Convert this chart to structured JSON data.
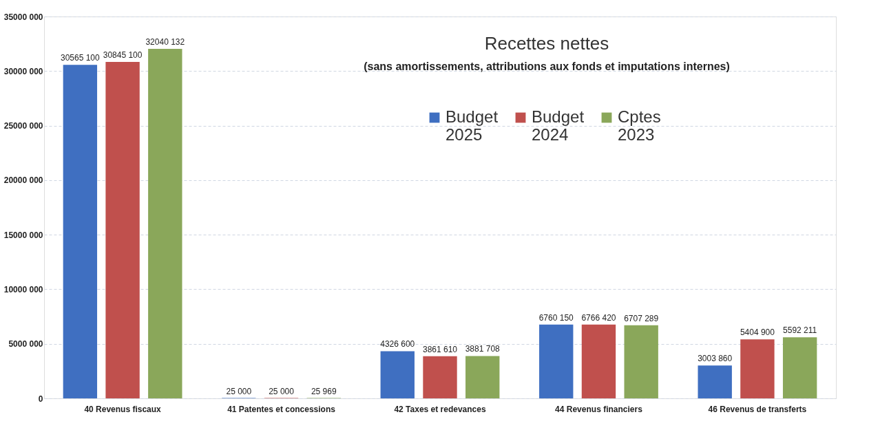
{
  "chart_data": {
    "type": "bar",
    "title": "Recettes nettes",
    "subtitle": "(sans amortissements, attributions aux fonds et imputations internes)",
    "categories": [
      "40 Revenus fiscaux",
      "41 Patentes et concessions",
      "42 Taxes et redevances",
      "44 Revenus financiers",
      "46 Revenus de transferts"
    ],
    "series": [
      {
        "name": "Budget 2025",
        "color": "#3f6fc1",
        "values": [
          30565100,
          25000,
          4326600,
          6760150,
          3003860
        ],
        "value_labels": [
          "30565 100",
          "25 000",
          "4326 600",
          "6760 150",
          "3003 860"
        ]
      },
      {
        "name": "Budget 2024",
        "color": "#c0504d",
        "values": [
          30845100,
          25000,
          3861610,
          6766420,
          5404900
        ],
        "value_labels": [
          "30845 100",
          "25 000",
          "3861 610",
          "6766 420",
          "5404 900"
        ]
      },
      {
        "name": "Cptes 2023",
        "color": "#8aa75a",
        "values": [
          32040132,
          25969,
          3881708,
          6707289,
          5592211
        ],
        "value_labels": [
          "32040 132",
          "25 969",
          "3881 708",
          "6707 289",
          "5592 211"
        ]
      }
    ],
    "ylim": [
      0,
      35000000
    ],
    "yticks": [
      {
        "value": 0,
        "label": "0"
      },
      {
        "value": 5000000,
        "label": "5000 000"
      },
      {
        "value": 10000000,
        "label": "10000 000"
      },
      {
        "value": 15000000,
        "label": "15000 000"
      },
      {
        "value": 20000000,
        "label": "20000 000"
      },
      {
        "value": 25000000,
        "label": "25000 000"
      },
      {
        "value": 30000000,
        "label": "30000 000"
      },
      {
        "value": 35000000,
        "label": "35000 000"
      }
    ],
    "grid": "y",
    "legend": "top"
  }
}
